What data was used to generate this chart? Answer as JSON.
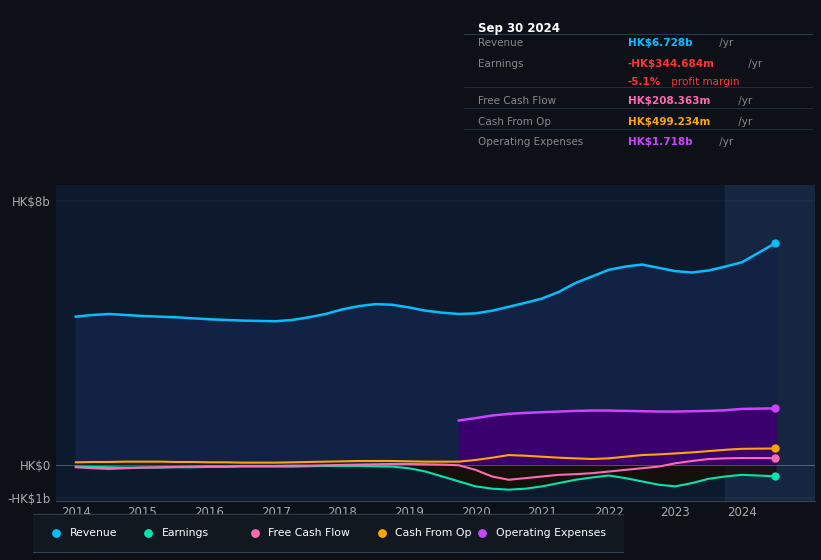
{
  "bg_color": "#0d1117",
  "chart_bg": "#0d1a2e",
  "years": [
    2014.0,
    2014.25,
    2014.5,
    2014.75,
    2015.0,
    2015.25,
    2015.5,
    2015.75,
    2016.0,
    2016.25,
    2016.5,
    2016.75,
    2017.0,
    2017.25,
    2017.5,
    2017.75,
    2018.0,
    2018.25,
    2018.5,
    2018.75,
    2019.0,
    2019.25,
    2019.5,
    2019.75,
    2020.0,
    2020.25,
    2020.5,
    2020.75,
    2021.0,
    2021.25,
    2021.5,
    2021.75,
    2022.0,
    2022.25,
    2022.5,
    2022.75,
    2023.0,
    2023.25,
    2023.5,
    2023.75,
    2024.0,
    2024.5
  ],
  "revenue": [
    4.5,
    4.55,
    4.58,
    4.55,
    4.52,
    4.5,
    4.48,
    4.45,
    4.42,
    4.4,
    4.38,
    4.37,
    4.36,
    4.4,
    4.48,
    4.58,
    4.72,
    4.82,
    4.88,
    4.86,
    4.78,
    4.68,
    4.62,
    4.58,
    4.6,
    4.68,
    4.8,
    4.92,
    5.05,
    5.25,
    5.52,
    5.72,
    5.92,
    6.02,
    6.08,
    5.98,
    5.88,
    5.84,
    5.9,
    6.02,
    6.15,
    6.728
  ],
  "earnings": [
    -0.05,
    -0.06,
    -0.07,
    -0.08,
    -0.08,
    -0.08,
    -0.07,
    -0.07,
    -0.06,
    -0.06,
    -0.05,
    -0.05,
    -0.05,
    -0.05,
    -0.04,
    -0.03,
    -0.03,
    -0.03,
    -0.04,
    -0.05,
    -0.1,
    -0.2,
    -0.35,
    -0.5,
    -0.65,
    -0.72,
    -0.75,
    -0.72,
    -0.65,
    -0.55,
    -0.45,
    -0.38,
    -0.32,
    -0.4,
    -0.5,
    -0.6,
    -0.65,
    -0.55,
    -0.42,
    -0.35,
    -0.3,
    -0.344
  ],
  "free_cash_flow": [
    -0.07,
    -0.1,
    -0.12,
    -0.1,
    -0.08,
    -0.07,
    -0.06,
    -0.05,
    -0.04,
    -0.04,
    -0.03,
    -0.03,
    -0.03,
    -0.02,
    -0.02,
    -0.01,
    0.0,
    0.01,
    0.02,
    0.03,
    0.03,
    0.02,
    0.01,
    -0.01,
    -0.15,
    -0.35,
    -0.45,
    -0.4,
    -0.35,
    -0.3,
    -0.28,
    -0.25,
    -0.2,
    -0.15,
    -0.1,
    -0.05,
    0.05,
    0.12,
    0.18,
    0.2,
    0.21,
    0.208
  ],
  "cash_from_op": [
    0.08,
    0.09,
    0.09,
    0.1,
    0.1,
    0.1,
    0.09,
    0.09,
    0.08,
    0.08,
    0.07,
    0.07,
    0.07,
    0.08,
    0.09,
    0.1,
    0.11,
    0.12,
    0.12,
    0.12,
    0.11,
    0.1,
    0.1,
    0.1,
    0.15,
    0.22,
    0.3,
    0.28,
    0.25,
    0.22,
    0.2,
    0.18,
    0.2,
    0.25,
    0.3,
    0.32,
    0.35,
    0.38,
    0.42,
    0.46,
    0.49,
    0.499
  ],
  "op_expenses_x": [
    2019.75,
    2020.0,
    2020.25,
    2020.5,
    2020.75,
    2021.0,
    2021.25,
    2021.5,
    2021.75,
    2022.0,
    2022.25,
    2022.5,
    2022.75,
    2023.0,
    2023.25,
    2023.5,
    2023.75,
    2024.0,
    2024.5
  ],
  "op_expenses_y": [
    1.35,
    1.42,
    1.5,
    1.55,
    1.58,
    1.6,
    1.62,
    1.64,
    1.65,
    1.65,
    1.64,
    1.63,
    1.62,
    1.62,
    1.63,
    1.64,
    1.66,
    1.7,
    1.718
  ],
  "revenue_color": "#00bfff",
  "earnings_color": "#00e5b0",
  "free_cash_flow_color": "#ff69b4",
  "cash_from_op_color": "#ffa500",
  "op_expenses_color": "#cc44ff",
  "revenue_fill": "#112244",
  "op_expenses_fill": "#3a006e",
  "ylim": [
    -1.1,
    8.5
  ],
  "y_hk8b": 8.0,
  "y_hk0": 0.0,
  "y_hkm1b": -1.0,
  "xlim": [
    2013.7,
    2025.1
  ],
  "highlight_start": 2023.75,
  "xtick_positions": [
    2014,
    2015,
    2016,
    2017,
    2018,
    2019,
    2020,
    2021,
    2022,
    2023,
    2024
  ],
  "xtick_labels": [
    "2014",
    "2015",
    "2016",
    "2017",
    "2018",
    "2019",
    "2020",
    "2021",
    "2022",
    "2023",
    "2024"
  ],
  "info_box": {
    "title": "Sep 30 2024",
    "rows": [
      {
        "label": "Revenue",
        "value": "HK$6.728b",
        "unit": " /yr",
        "value_color": "#00bfff",
        "divider": false
      },
      {
        "label": "Earnings",
        "value": "-HK$344.684m",
        "unit": " /yr",
        "value_color": "#ff3333",
        "divider": false
      },
      {
        "label": "",
        "value": "-5.1%",
        "unit": " profit margin",
        "value_color": "#ff3333",
        "divider": false,
        "extra": true
      },
      {
        "label": "Free Cash Flow",
        "value": "HK$208.363m",
        "unit": " /yr",
        "value_color": "#ff69b4",
        "divider": true
      },
      {
        "label": "Cash From Op",
        "value": "HK$499.234m",
        "unit": " /yr",
        "value_color": "#ffa500",
        "divider": true
      },
      {
        "label": "Operating Expenses",
        "value": "HK$1.718b",
        "unit": " /yr",
        "value_color": "#cc44ff",
        "divider": true
      }
    ]
  },
  "legend": [
    {
      "label": "Revenue",
      "color": "#00bfff"
    },
    {
      "label": "Earnings",
      "color": "#00e5b0"
    },
    {
      "label": "Free Cash Flow",
      "color": "#ff69b4"
    },
    {
      "label": "Cash From Op",
      "color": "#ffa500"
    },
    {
      "label": "Operating Expenses",
      "color": "#cc44ff"
    }
  ]
}
